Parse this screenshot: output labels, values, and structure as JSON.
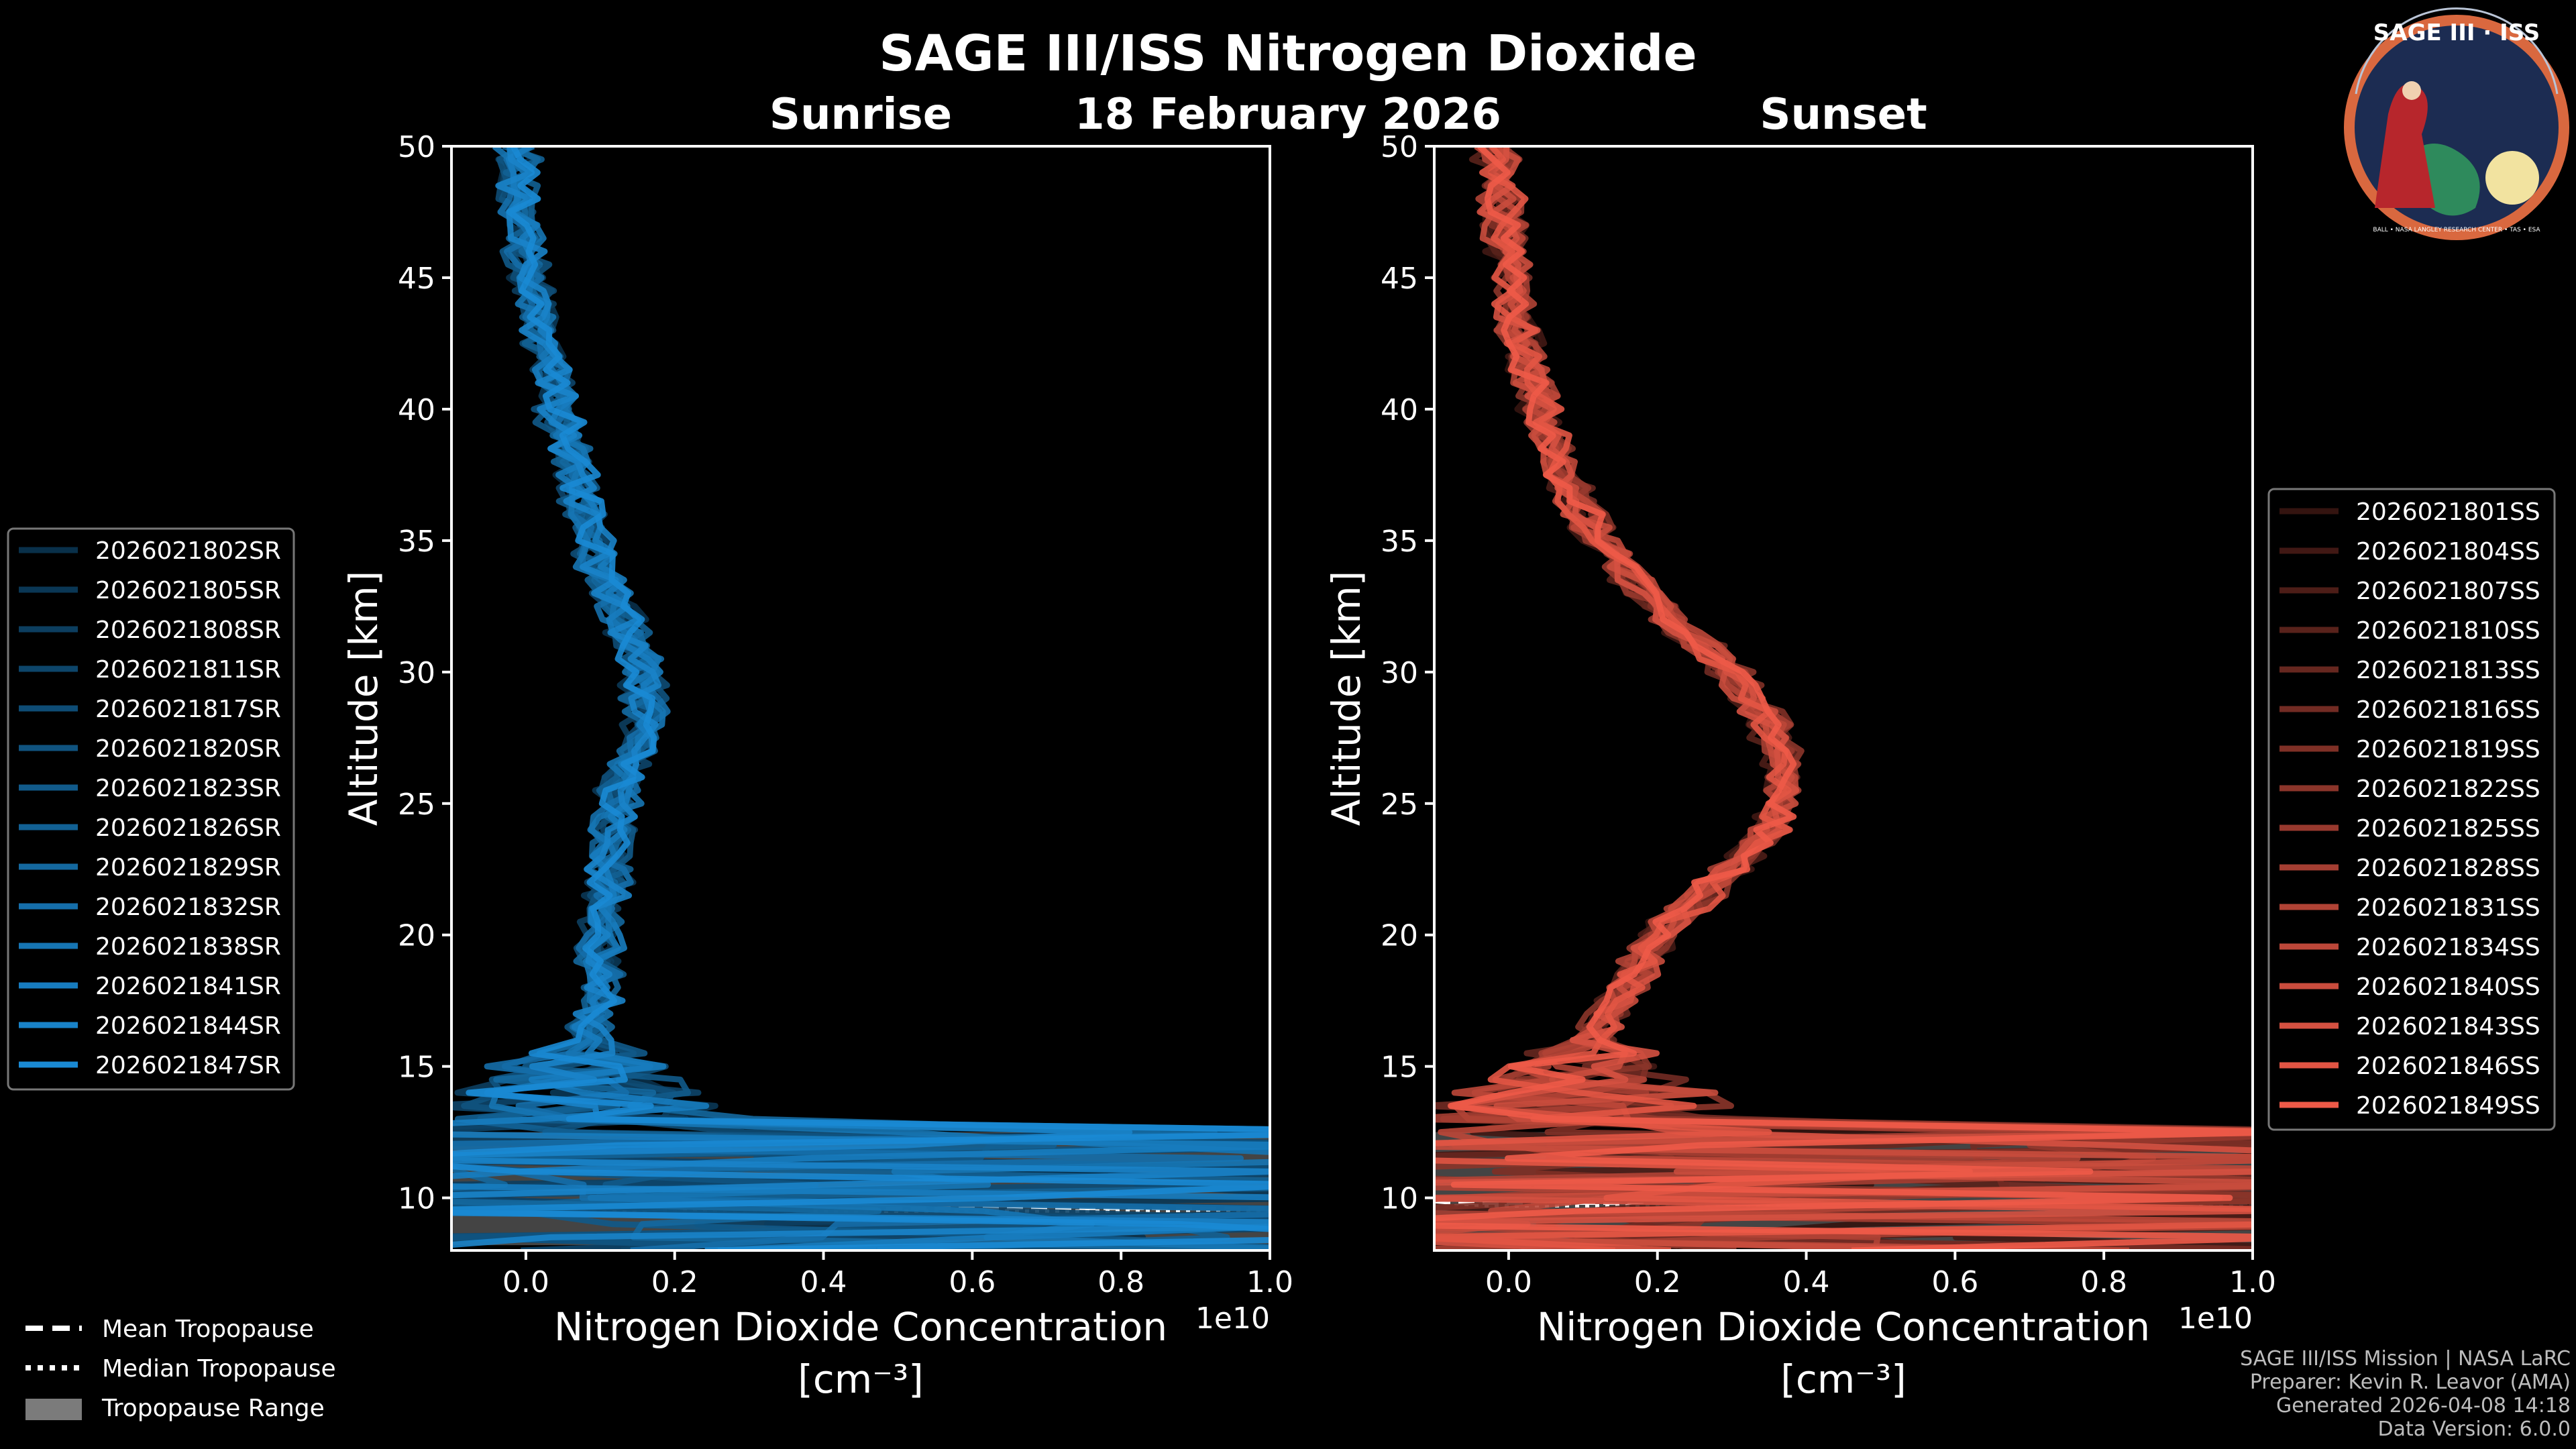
{
  "figure": {
    "title": "SAGE III/ISS Nitrogen Dioxide",
    "date": "18 February 2026",
    "logo": {
      "top_text": "SAGE III · ISS",
      "ring_text": "BALL • NASA LANGLEY RESEARCH CENTER • TAS • ESA"
    },
    "footer": [
      "SAGE III/ISS Mission | NASA LaRC",
      "Preparer: Kevin R. Leavor (AMA)",
      "Generated 2026-04-08 14:18",
      "Data Version: 6.0.0"
    ],
    "bottom_legend": [
      {
        "label": "Mean Tropopause",
        "style": "dashed"
      },
      {
        "label": "Median Tropopause",
        "style": "dotted"
      },
      {
        "label": "Tropopause Range",
        "style": "patch"
      }
    ]
  },
  "chart_data": [
    {
      "type": "line",
      "id": "sunrise",
      "title": "Sunrise",
      "xlabel": "Nitrogen Dioxide Concentration",
      "xunit": "[cm⁻³]",
      "ylabel": "Altitude [km]",
      "x_scale_label": "1e10",
      "xlim": [
        -0.1,
        1.0
      ],
      "ylim": [
        8,
        50
      ],
      "xticks": [
        0.0,
        0.2,
        0.4,
        0.6,
        0.8,
        1.0
      ],
      "xtick_labels": [
        "0.0",
        "0.2",
        "0.4",
        "0.6",
        "0.8",
        "1.0"
      ],
      "yticks": [
        10,
        15,
        20,
        25,
        30,
        35,
        40,
        45,
        50
      ],
      "color": "#1a8ad4",
      "legend_position": "left",
      "tropopause": {
        "mean": 9.6,
        "median": 9.5,
        "range": [
          8.2,
          12.5
        ]
      },
      "mean_profile": {
        "altitude": [
          8.5,
          9.5,
          10.5,
          11.5,
          12.5,
          13.5,
          14.5,
          15.5,
          16.5,
          18,
          20,
          22,
          24,
          26,
          28,
          30,
          32,
          34,
          36,
          38,
          40,
          42,
          44,
          46,
          48,
          50
        ],
        "value": [
          0.05,
          0.06,
          0.06,
          0.07,
          0.07,
          0.07,
          0.07,
          0.08,
          0.09,
          0.1,
          0.1,
          0.11,
          0.12,
          0.13,
          0.16,
          0.16,
          0.13,
          0.1,
          0.08,
          0.06,
          0.04,
          0.03,
          0.01,
          0.0,
          -0.01,
          -0.01
        ]
      },
      "series": [
        {
          "name": "2026021802SR"
        },
        {
          "name": "2026021805SR"
        },
        {
          "name": "2026021808SR"
        },
        {
          "name": "2026021811SR"
        },
        {
          "name": "2026021817SR"
        },
        {
          "name": "2026021820SR"
        },
        {
          "name": "2026021823SR"
        },
        {
          "name": "2026021826SR"
        },
        {
          "name": "2026021829SR"
        },
        {
          "name": "2026021832SR"
        },
        {
          "name": "2026021838SR"
        },
        {
          "name": "2026021841SR"
        },
        {
          "name": "2026021844SR"
        },
        {
          "name": "2026021847SR"
        }
      ]
    },
    {
      "type": "line",
      "id": "sunset",
      "title": "Sunset",
      "xlabel": "Nitrogen Dioxide Concentration",
      "xunit": "[cm⁻³]",
      "ylabel": "Altitude [km]",
      "x_scale_label": "1e10",
      "xlim": [
        -0.1,
        1.0
      ],
      "ylim": [
        8,
        50
      ],
      "xticks": [
        0.0,
        0.2,
        0.4,
        0.6,
        0.8,
        1.0
      ],
      "xtick_labels": [
        "0.0",
        "0.2",
        "0.4",
        "0.6",
        "0.8",
        "1.0"
      ],
      "yticks": [
        10,
        15,
        20,
        25,
        30,
        35,
        40,
        45,
        50
      ],
      "color": "#ee5a48",
      "legend_position": "right",
      "tropopause": {
        "mean": 9.8,
        "median": 9.7,
        "range": [
          8.2,
          12.5
        ]
      },
      "mean_profile": {
        "altitude": [
          8.5,
          9.5,
          10.5,
          11.5,
          12.5,
          13.5,
          14.5,
          15.5,
          16.5,
          18,
          20,
          22,
          24,
          26,
          28,
          30,
          32,
          34,
          36,
          38,
          40,
          42,
          44,
          46,
          48,
          50
        ],
        "value": [
          0.05,
          0.06,
          0.06,
          0.07,
          0.08,
          0.1,
          0.1,
          0.11,
          0.12,
          0.16,
          0.2,
          0.28,
          0.35,
          0.37,
          0.35,
          0.3,
          0.22,
          0.15,
          0.1,
          0.06,
          0.04,
          0.02,
          0.01,
          0.0,
          -0.01,
          -0.02
        ]
      },
      "series": [
        {
          "name": "2026021801SS"
        },
        {
          "name": "2026021804SS"
        },
        {
          "name": "2026021807SS"
        },
        {
          "name": "2026021810SS"
        },
        {
          "name": "2026021813SS"
        },
        {
          "name": "2026021816SS"
        },
        {
          "name": "2026021819SS"
        },
        {
          "name": "2026021822SS"
        },
        {
          "name": "2026021825SS"
        },
        {
          "name": "2026021828SS"
        },
        {
          "name": "2026021831SS"
        },
        {
          "name": "2026021834SS"
        },
        {
          "name": "2026021840SS"
        },
        {
          "name": "2026021843SS"
        },
        {
          "name": "2026021846SS"
        },
        {
          "name": "2026021849SS"
        }
      ]
    }
  ]
}
